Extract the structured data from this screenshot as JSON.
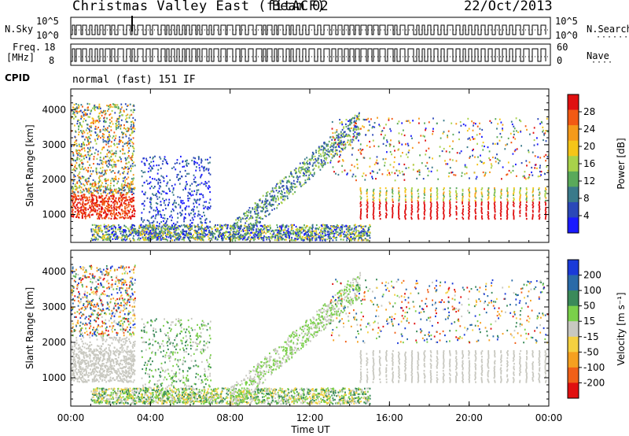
{
  "header": {
    "title": "Christmas Valley East (fitACF)",
    "beam": "Beam 02",
    "date": "22/Oct/2013"
  },
  "info_panels": {
    "nsky_label": "N.Sky",
    "nsky_ticks": [
      "10^5",
      "10^0"
    ],
    "nsearch_label": "N.Search",
    "nsearch_ticks": [
      "10^5",
      "10^0"
    ],
    "freq_label_line1": "Freq.",
    "freq_label_line2": "[MHz]",
    "freq_ticks": [
      "18",
      "8"
    ],
    "nave_label": "Nave",
    "nave_ticks": [
      "60",
      "0"
    ],
    "cpid_label": "CPID",
    "cpid_mode": "normal (fast) 151 IF"
  },
  "chart_data": [
    {
      "type": "heatmap",
      "name": "power-panel",
      "ylabel": "Slant Range [km]",
      "yticks": [
        "1000",
        "2000",
        "3000",
        "4000"
      ],
      "ylim": [
        200,
        4600
      ],
      "xlim": [
        0,
        24
      ],
      "colorbar_label": "Power [dB]",
      "colorbar_ticks": [
        "4",
        "8",
        "12",
        "16",
        "20",
        "24",
        "28"
      ],
      "colors": [
        "#1a1aff",
        "#2b48b8",
        "#3a7a8a",
        "#5aa95a",
        "#a8d24a",
        "#f5c518",
        "#f59a1a",
        "#f25a14",
        "#e01010"
      ]
    },
    {
      "type": "heatmap",
      "name": "velocity-panel",
      "ylabel": "Slant Range [km]",
      "yticks": [
        "1000",
        "2000",
        "3000",
        "4000"
      ],
      "ylim": [
        200,
        4600
      ],
      "xlim": [
        0,
        24
      ],
      "colorbar_label": "Velocity [m s⁻¹]",
      "colorbar_ticks": [
        "200",
        "100",
        "50",
        "15",
        "-15",
        "-50",
        "-100",
        "-200"
      ],
      "colors": [
        "#1a3ad8",
        "#2a6aa8",
        "#3a8a5a",
        "#7ad04a",
        "#c8c8c0",
        "#f5d040",
        "#f5a020",
        "#f06018",
        "#e01010"
      ]
    }
  ],
  "x_axis": {
    "label": "Time UT",
    "ticks": [
      "00:00",
      "04:00",
      "08:00",
      "12:00",
      "16:00",
      "20:00",
      "00:00"
    ]
  }
}
